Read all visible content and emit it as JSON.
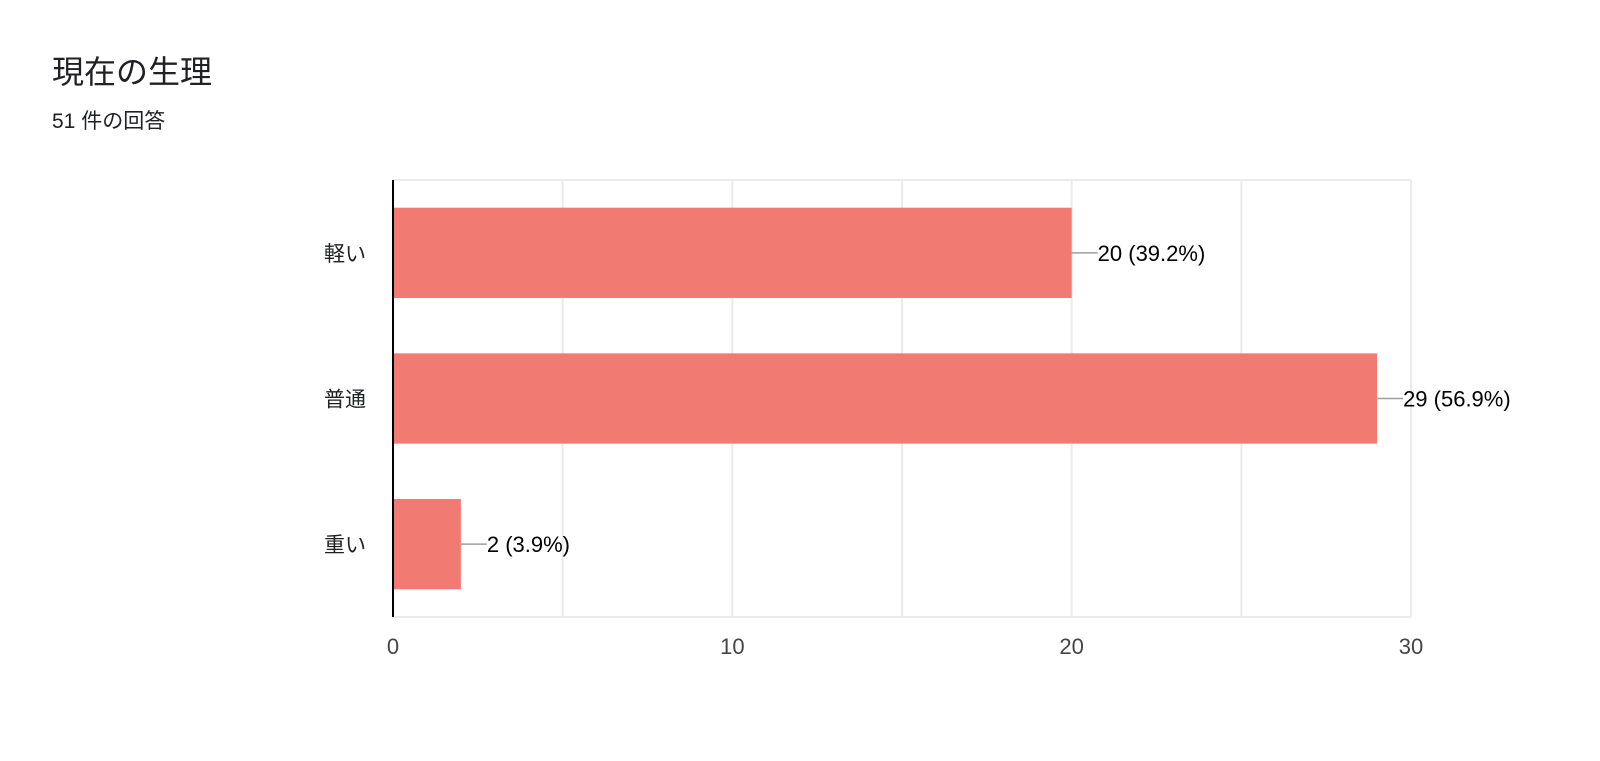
{
  "header": {
    "title": "現在の生理",
    "subtitle": "51 件の回答"
  },
  "colors": {
    "bar": "#f17b72",
    "grid": "#ebebeb",
    "axis": "#000000",
    "leader": "#9e9e9e",
    "text": "#202124"
  },
  "chart_data": {
    "type": "bar",
    "orientation": "horizontal",
    "categories": [
      "軽い",
      "普通",
      "重い"
    ],
    "values": [
      20,
      29,
      2
    ],
    "data_labels": [
      "20 (39.2%)",
      "29 (56.9%)",
      "2 (3.9%)"
    ],
    "xlim": [
      0,
      30
    ],
    "x_ticks": [
      0,
      10,
      20,
      30
    ],
    "x_tick_labels": [
      "0",
      "10",
      "20",
      "30"
    ],
    "grid": true,
    "legend": "none"
  }
}
